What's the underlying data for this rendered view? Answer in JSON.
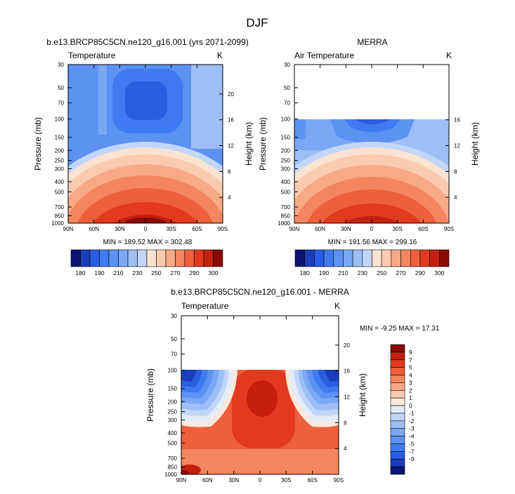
{
  "page_title": "DJF",
  "colors": {
    "absolute_scale": [
      "#0c1570",
      "#1a3dbb",
      "#2a5ee0",
      "#3f7af0",
      "#5c92f2",
      "#7aa8f4",
      "#9dbff6",
      "#c1d6f9",
      "#fbe3d1",
      "#fbcbb0",
      "#f8a985",
      "#f4855e",
      "#ee5f3c",
      "#e23a1f",
      "#c5200f",
      "#8a0a05"
    ],
    "difference_scale": [
      "#0c1570",
      "#1a3dbb",
      "#2a5ee0",
      "#3f7af0",
      "#5c92f2",
      "#7aa8f4",
      "#9dbff6",
      "#c1d6f9",
      "#e2ecfb",
      "#fde9dc",
      "#fbcbb0",
      "#f8a985",
      "#f4855e",
      "#ee5f3c",
      "#e23a1f",
      "#c5200f",
      "#8a0a05"
    ]
  },
  "chart_data": [
    {
      "type": "heatmap",
      "title": "b.e13.BRCP85C5CN.ne120_g16.001 (yrs 2071-2099)",
      "left_label": "Temperature",
      "right_label": "K",
      "xlabel": "",
      "ylabel": "Pressure (mb)",
      "y2label": "Height (km)",
      "x_ticks": [
        "90N",
        "60N",
        "30N",
        "0",
        "30S",
        "60S",
        "90S"
      ],
      "y_ticks": [
        "30",
        "50",
        "70",
        "100",
        "150",
        "200",
        "250",
        "300",
        "400",
        "500",
        "700",
        "850",
        "1000"
      ],
      "y2_ticks": [
        "20",
        "16",
        "12",
        "8",
        "4"
      ],
      "stats": "MIN = 189.52   MAX = 302.48",
      "colorbar_labels": [
        "180",
        "190",
        "210",
        "230",
        "250",
        "270",
        "290",
        "300"
      ],
      "min": 189.52,
      "max": 302.48
    },
    {
      "type": "heatmap",
      "title": "MERRA",
      "left_label": "Air Temperature",
      "right_label": "K",
      "xlabel": "",
      "ylabel": "Pressure (mb)",
      "y2label": "Height (km)",
      "x_ticks": [
        "90N",
        "60N",
        "30N",
        "0",
        "30S",
        "60S",
        "90S"
      ],
      "y_ticks": [
        "30",
        "50",
        "70",
        "100",
        "150",
        "200",
        "250",
        "300",
        "400",
        "500",
        "700",
        "850",
        "1000"
      ],
      "y2_ticks": [
        "16",
        "12",
        "8",
        "4"
      ],
      "stats": "MIN = 191.56   MAX = 299.16",
      "colorbar_labels": [
        "180",
        "190",
        "210",
        "230",
        "250",
        "270",
        "290",
        "300"
      ],
      "min": 191.56,
      "max": 299.16
    },
    {
      "type": "heatmap",
      "title": "b.e13.BRCP85C5CN.ne120_g16.001 - MERRA",
      "left_label": "Temperature",
      "right_label": "K",
      "xlabel": "",
      "ylabel": "Pressure (mb)",
      "y2label": "Height (km)",
      "x_ticks": [
        "90N",
        "60N",
        "30N",
        "0",
        "30S",
        "60S",
        "90S"
      ],
      "y_ticks": [
        "30",
        "50",
        "70",
        "100",
        "150",
        "200",
        "250",
        "300",
        "400",
        "500",
        "700",
        "850",
        "1000"
      ],
      "y2_ticks": [
        "20",
        "16",
        "12",
        "8",
        "4"
      ],
      "stats": "MIN =  -9.25   MAX =  17.31",
      "colorbar_labels": [
        "9",
        "7",
        "5",
        "4",
        "3",
        "2",
        "1",
        "0",
        "-1",
        "-2",
        "-3",
        "-4",
        "-5",
        "-7",
        "-9"
      ],
      "min": -9.25,
      "max": 17.31
    }
  ]
}
